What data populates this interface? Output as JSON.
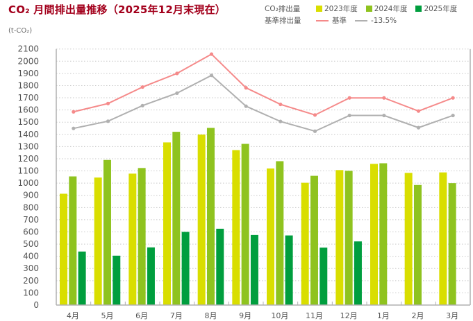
{
  "header": {
    "title": "CO₂ 月間排出量推移（2025年12月末現在）",
    "unit": "(t-CO₂)"
  },
  "legend": {
    "emissions_label": "CO₂排出量",
    "baseline_label": "基準排出量",
    "items": [
      {
        "label": "2023年度",
        "color": "#d9de00",
        "type": "box"
      },
      {
        "label": "2024年度",
        "color": "#8fc31f",
        "type": "box"
      },
      {
        "label": "2025年度",
        "color": "#009e3e",
        "type": "box"
      },
      {
        "label": "基準",
        "color": "#f58a8a",
        "type": "line"
      },
      {
        "label": "-13.5%",
        "color": "#b0b0b0",
        "type": "line"
      }
    ]
  },
  "chart_data": {
    "type": "bar",
    "title": "CO₂ 月間排出量推移（2025年12月末現在）",
    "xlabel": "",
    "ylabel": "(t-CO₂)",
    "ylim": [
      0,
      2100
    ],
    "yticks": [
      0,
      100,
      200,
      300,
      400,
      500,
      600,
      700,
      800,
      900,
      1000,
      1100,
      1200,
      1300,
      1400,
      1500,
      1600,
      1700,
      1800,
      1900,
      2000,
      2100
    ],
    "grid": true,
    "legend_position": "top-right",
    "categories": [
      "4月",
      "5月",
      "6月",
      "7月",
      "8月",
      "9月",
      "10月",
      "11月",
      "12月",
      "1月",
      "2月",
      "3月"
    ],
    "series": [
      {
        "name": "2023年度",
        "type": "bar",
        "color": "#d9de00",
        "values": [
          913,
          1046,
          1078,
          1334,
          1398,
          1271,
          1120,
          1003,
          1107,
          1158,
          1084,
          1088
        ]
      },
      {
        "name": "2024年度",
        "type": "bar",
        "color": "#8fc31f",
        "values": [
          1055,
          1190,
          1124,
          1421,
          1453,
          1322,
          1180,
          1060,
          1101,
          1163,
          985,
          1000
        ]
      },
      {
        "name": "2025年度",
        "type": "bar",
        "color": "#009e3e",
        "values": [
          439,
          405,
          473,
          600,
          626,
          575,
          571,
          471,
          522,
          null,
          null,
          null
        ]
      },
      {
        "name": "基準",
        "type": "line",
        "color": "#f58a8a",
        "values": [
          1585,
          1653,
          1788,
          1900,
          2058,
          1782,
          1646,
          1559,
          1699,
          1699,
          1591,
          1699
        ]
      },
      {
        "name": "-13.5%",
        "type": "line",
        "color": "#b0b0b0",
        "values": [
          1449,
          1508,
          1636,
          1738,
          1884,
          1631,
          1506,
          1426,
          1555,
          1555,
          1455,
          1555
        ]
      }
    ]
  }
}
